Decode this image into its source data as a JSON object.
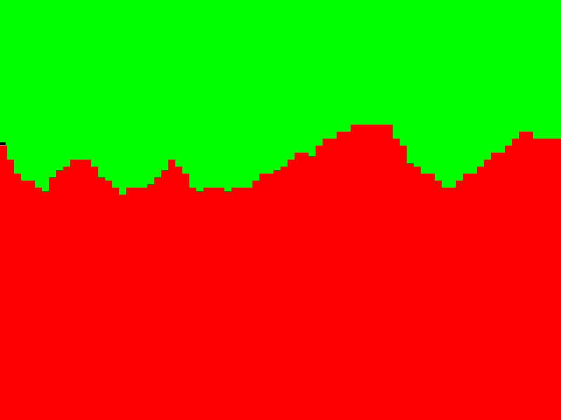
{
  "colors": {
    "sky": "#00ff00",
    "ground": "#ff0000",
    "marker": "#000000"
  },
  "terrain": {
    "step_width": 10,
    "surface_heights": [
      208,
      228,
      248,
      258,
      258,
      268,
      273,
      253,
      243,
      238,
      228,
      228,
      228,
      238,
      253,
      258,
      268,
      278,
      268,
      268,
      268,
      263,
      253,
      243,
      228,
      238,
      248,
      268,
      273,
      268,
      268,
      268,
      273,
      268,
      268,
      268,
      258,
      248,
      248,
      243,
      238,
      228,
      218,
      218,
      223,
      208,
      198,
      198,
      188,
      188,
      178,
      178,
      178,
      178,
      178,
      178,
      198,
      208,
      233,
      238,
      248,
      248,
      258,
      268,
      268,
      258,
      248,
      248,
      238,
      228,
      218,
      218,
      208,
      198,
      188,
      188,
      198,
      198,
      198,
      198
    ]
  }
}
